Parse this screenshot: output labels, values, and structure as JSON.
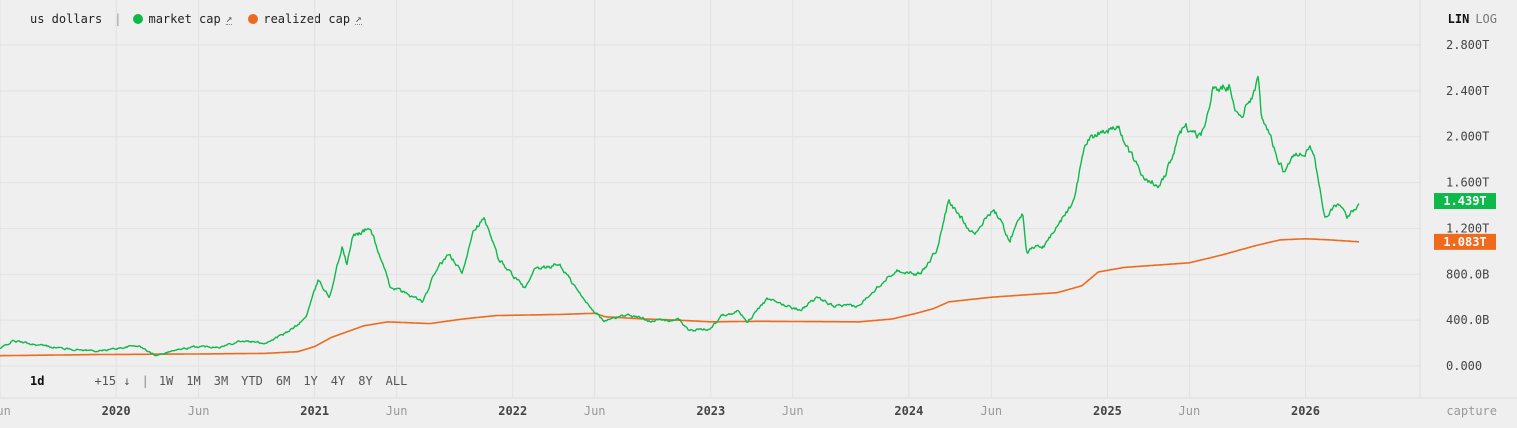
{
  "legend": {
    "unit_label": "us dollars",
    "separator": "|",
    "arrow": "↗",
    "series": [
      {
        "label": "market cap",
        "color": "#0fb84a"
      },
      {
        "label": "realized cap",
        "color": "#ee6a1c"
      }
    ]
  },
  "scale": {
    "lin": "LIN",
    "log": "LOG",
    "active": "LIN"
  },
  "toolbar": {
    "resolution": "1d",
    "offset": "+15 ↓",
    "separator": "|",
    "ranges": [
      "1W",
      "1M",
      "3M",
      "YTD",
      "6M",
      "1Y",
      "4Y",
      "8Y",
      "ALL"
    ]
  },
  "capture_label": "capture",
  "colors": {
    "grid": "#e2e2e2",
    "market": "#0fb84a",
    "realized": "#ee6a1c"
  },
  "chart_data": {
    "type": "line",
    "xlim": [
      "2019-06-01",
      "2026-07-31"
    ],
    "ylim": [
      0,
      2800000000000
    ],
    "y_ticks": [
      "0.000",
      "400.0B",
      "800.0B",
      "1.200T",
      "1.600T",
      "2.000T",
      "2.400T",
      "2.800T"
    ],
    "x_ticks": [
      {
        "label": "Jun",
        "date": "2019-06-01",
        "year": false
      },
      {
        "label": "2020",
        "date": "2020-01-01",
        "year": true
      },
      {
        "label": "Jun",
        "date": "2020-06-01",
        "year": false
      },
      {
        "label": "2021",
        "date": "2021-01-01",
        "year": true
      },
      {
        "label": "Jun",
        "date": "2021-06-01",
        "year": false
      },
      {
        "label": "2022",
        "date": "2022-01-01",
        "year": true
      },
      {
        "label": "Jun",
        "date": "2022-06-01",
        "year": false
      },
      {
        "label": "2023",
        "date": "2023-01-01",
        "year": true
      },
      {
        "label": "Jun",
        "date": "2023-06-01",
        "year": false
      },
      {
        "label": "2024",
        "date": "2024-01-01",
        "year": true
      },
      {
        "label": "Jun",
        "date": "2024-06-01",
        "year": false
      },
      {
        "label": "2025",
        "date": "2025-01-01",
        "year": true
      },
      {
        "label": "Jun",
        "date": "2025-06-01",
        "year": false
      },
      {
        "label": "2026",
        "date": "2026-01-01",
        "year": true
      }
    ],
    "series": [
      {
        "name": "market cap",
        "color": "#0fb84a",
        "last_value_label": "1.439T",
        "points": [
          [
            "2019-06-01",
            150
          ],
          [
            "2019-06-25",
            220
          ],
          [
            "2019-08-01",
            190
          ],
          [
            "2019-10-01",
            150
          ],
          [
            "2019-12-01",
            130
          ],
          [
            "2020-02-10",
            180
          ],
          [
            "2020-03-12",
            95
          ],
          [
            "2020-04-15",
            135
          ],
          [
            "2020-06-01",
            170
          ],
          [
            "2020-07-15",
            170
          ],
          [
            "2020-08-15",
            220
          ],
          [
            "2020-10-01",
            200
          ],
          [
            "2020-11-15",
            300
          ],
          [
            "2020-12-15",
            420
          ],
          [
            "2021-01-08",
            750
          ],
          [
            "2021-01-28",
            600
          ],
          [
            "2021-02-21",
            1050
          ],
          [
            "2021-03-01",
            880
          ],
          [
            "2021-03-13",
            1140
          ],
          [
            "2021-04-14",
            1200
          ],
          [
            "2021-05-19",
            700
          ],
          [
            "2021-06-10",
            650
          ],
          [
            "2021-07-20",
            560
          ],
          [
            "2021-08-15",
            860
          ],
          [
            "2021-09-07",
            970
          ],
          [
            "2021-09-30",
            800
          ],
          [
            "2021-10-20",
            1200
          ],
          [
            "2021-11-09",
            1280
          ],
          [
            "2021-12-05",
            940
          ],
          [
            "2022-01-24",
            670
          ],
          [
            "2022-02-10",
            830
          ],
          [
            "2022-03-28",
            890
          ],
          [
            "2022-05-10",
            590
          ],
          [
            "2022-06-18",
            390
          ],
          [
            "2022-07-30",
            450
          ],
          [
            "2022-09-10",
            400
          ],
          [
            "2022-11-05",
            400
          ],
          [
            "2022-11-21",
            310
          ],
          [
            "2022-12-31",
            320
          ],
          [
            "2023-01-20",
            440
          ],
          [
            "2023-02-20",
            480
          ],
          [
            "2023-03-10",
            390
          ],
          [
            "2023-04-14",
            580
          ],
          [
            "2023-06-15",
            490
          ],
          [
            "2023-07-14",
            590
          ],
          [
            "2023-08-18",
            520
          ],
          [
            "2023-10-01",
            520
          ],
          [
            "2023-10-25",
            650
          ],
          [
            "2023-12-08",
            840
          ],
          [
            "2024-01-22",
            800
          ],
          [
            "2024-02-20",
            1000
          ],
          [
            "2024-03-14",
            1430
          ],
          [
            "2024-05-01",
            1150
          ],
          [
            "2024-06-05",
            1380
          ],
          [
            "2024-07-05",
            1100
          ],
          [
            "2024-07-29",
            1350
          ],
          [
            "2024-08-05",
            1000
          ],
          [
            "2024-09-06",
            1050
          ],
          [
            "2024-10-29",
            1420
          ],
          [
            "2024-11-22",
            1950
          ],
          [
            "2024-12-17",
            2050
          ],
          [
            "2025-01-21",
            2080
          ],
          [
            "2025-02-28",
            1700
          ],
          [
            "2025-04-08",
            1550
          ],
          [
            "2025-05-22",
            2100
          ],
          [
            "2025-06-22",
            2000
          ],
          [
            "2025-07-14",
            2400
          ],
          [
            "2025-08-14",
            2450
          ],
          [
            "2025-09-01",
            2150
          ],
          [
            "2025-10-06",
            2480
          ],
          [
            "2025-10-11",
            2200
          ],
          [
            "2025-11-21",
            1700
          ],
          [
            "2025-12-10",
            1840
          ],
          [
            "2026-01-14",
            1900
          ],
          [
            "2026-02-06",
            1300
          ],
          [
            "2026-03-01",
            1400
          ],
          [
            "2026-03-20",
            1300
          ],
          [
            "2026-04-10",
            1439
          ]
        ]
      },
      {
        "name": "realized cap",
        "color": "#ee6a1c",
        "last_value_label": "1.083T",
        "points": [
          [
            "2019-06-01",
            90
          ],
          [
            "2019-12-01",
            100
          ],
          [
            "2020-06-01",
            105
          ],
          [
            "2020-10-01",
            110
          ],
          [
            "2020-12-01",
            125
          ],
          [
            "2021-01-01",
            170
          ],
          [
            "2021-02-01",
            250
          ],
          [
            "2021-04-01",
            350
          ],
          [
            "2021-05-15",
            385
          ],
          [
            "2021-08-01",
            370
          ],
          [
            "2021-10-01",
            410
          ],
          [
            "2021-12-01",
            440
          ],
          [
            "2022-04-01",
            450
          ],
          [
            "2022-06-01",
            460
          ],
          [
            "2022-06-20",
            430
          ],
          [
            "2022-09-01",
            410
          ],
          [
            "2022-11-01",
            400
          ],
          [
            "2023-01-01",
            385
          ],
          [
            "2023-04-01",
            390
          ],
          [
            "2023-10-01",
            385
          ],
          [
            "2023-12-01",
            410
          ],
          [
            "2024-01-15",
            460
          ],
          [
            "2024-02-15",
            500
          ],
          [
            "2024-03-15",
            560
          ],
          [
            "2024-06-01",
            600
          ],
          [
            "2024-10-01",
            640
          ],
          [
            "2024-11-15",
            700
          ],
          [
            "2024-12-15",
            820
          ],
          [
            "2025-02-01",
            860
          ],
          [
            "2025-06-01",
            900
          ],
          [
            "2025-08-01",
            970
          ],
          [
            "2025-10-01",
            1050
          ],
          [
            "2025-11-15",
            1100
          ],
          [
            "2026-01-01",
            1110
          ],
          [
            "2026-02-15",
            1100
          ],
          [
            "2026-04-10",
            1083
          ]
        ]
      }
    ]
  }
}
